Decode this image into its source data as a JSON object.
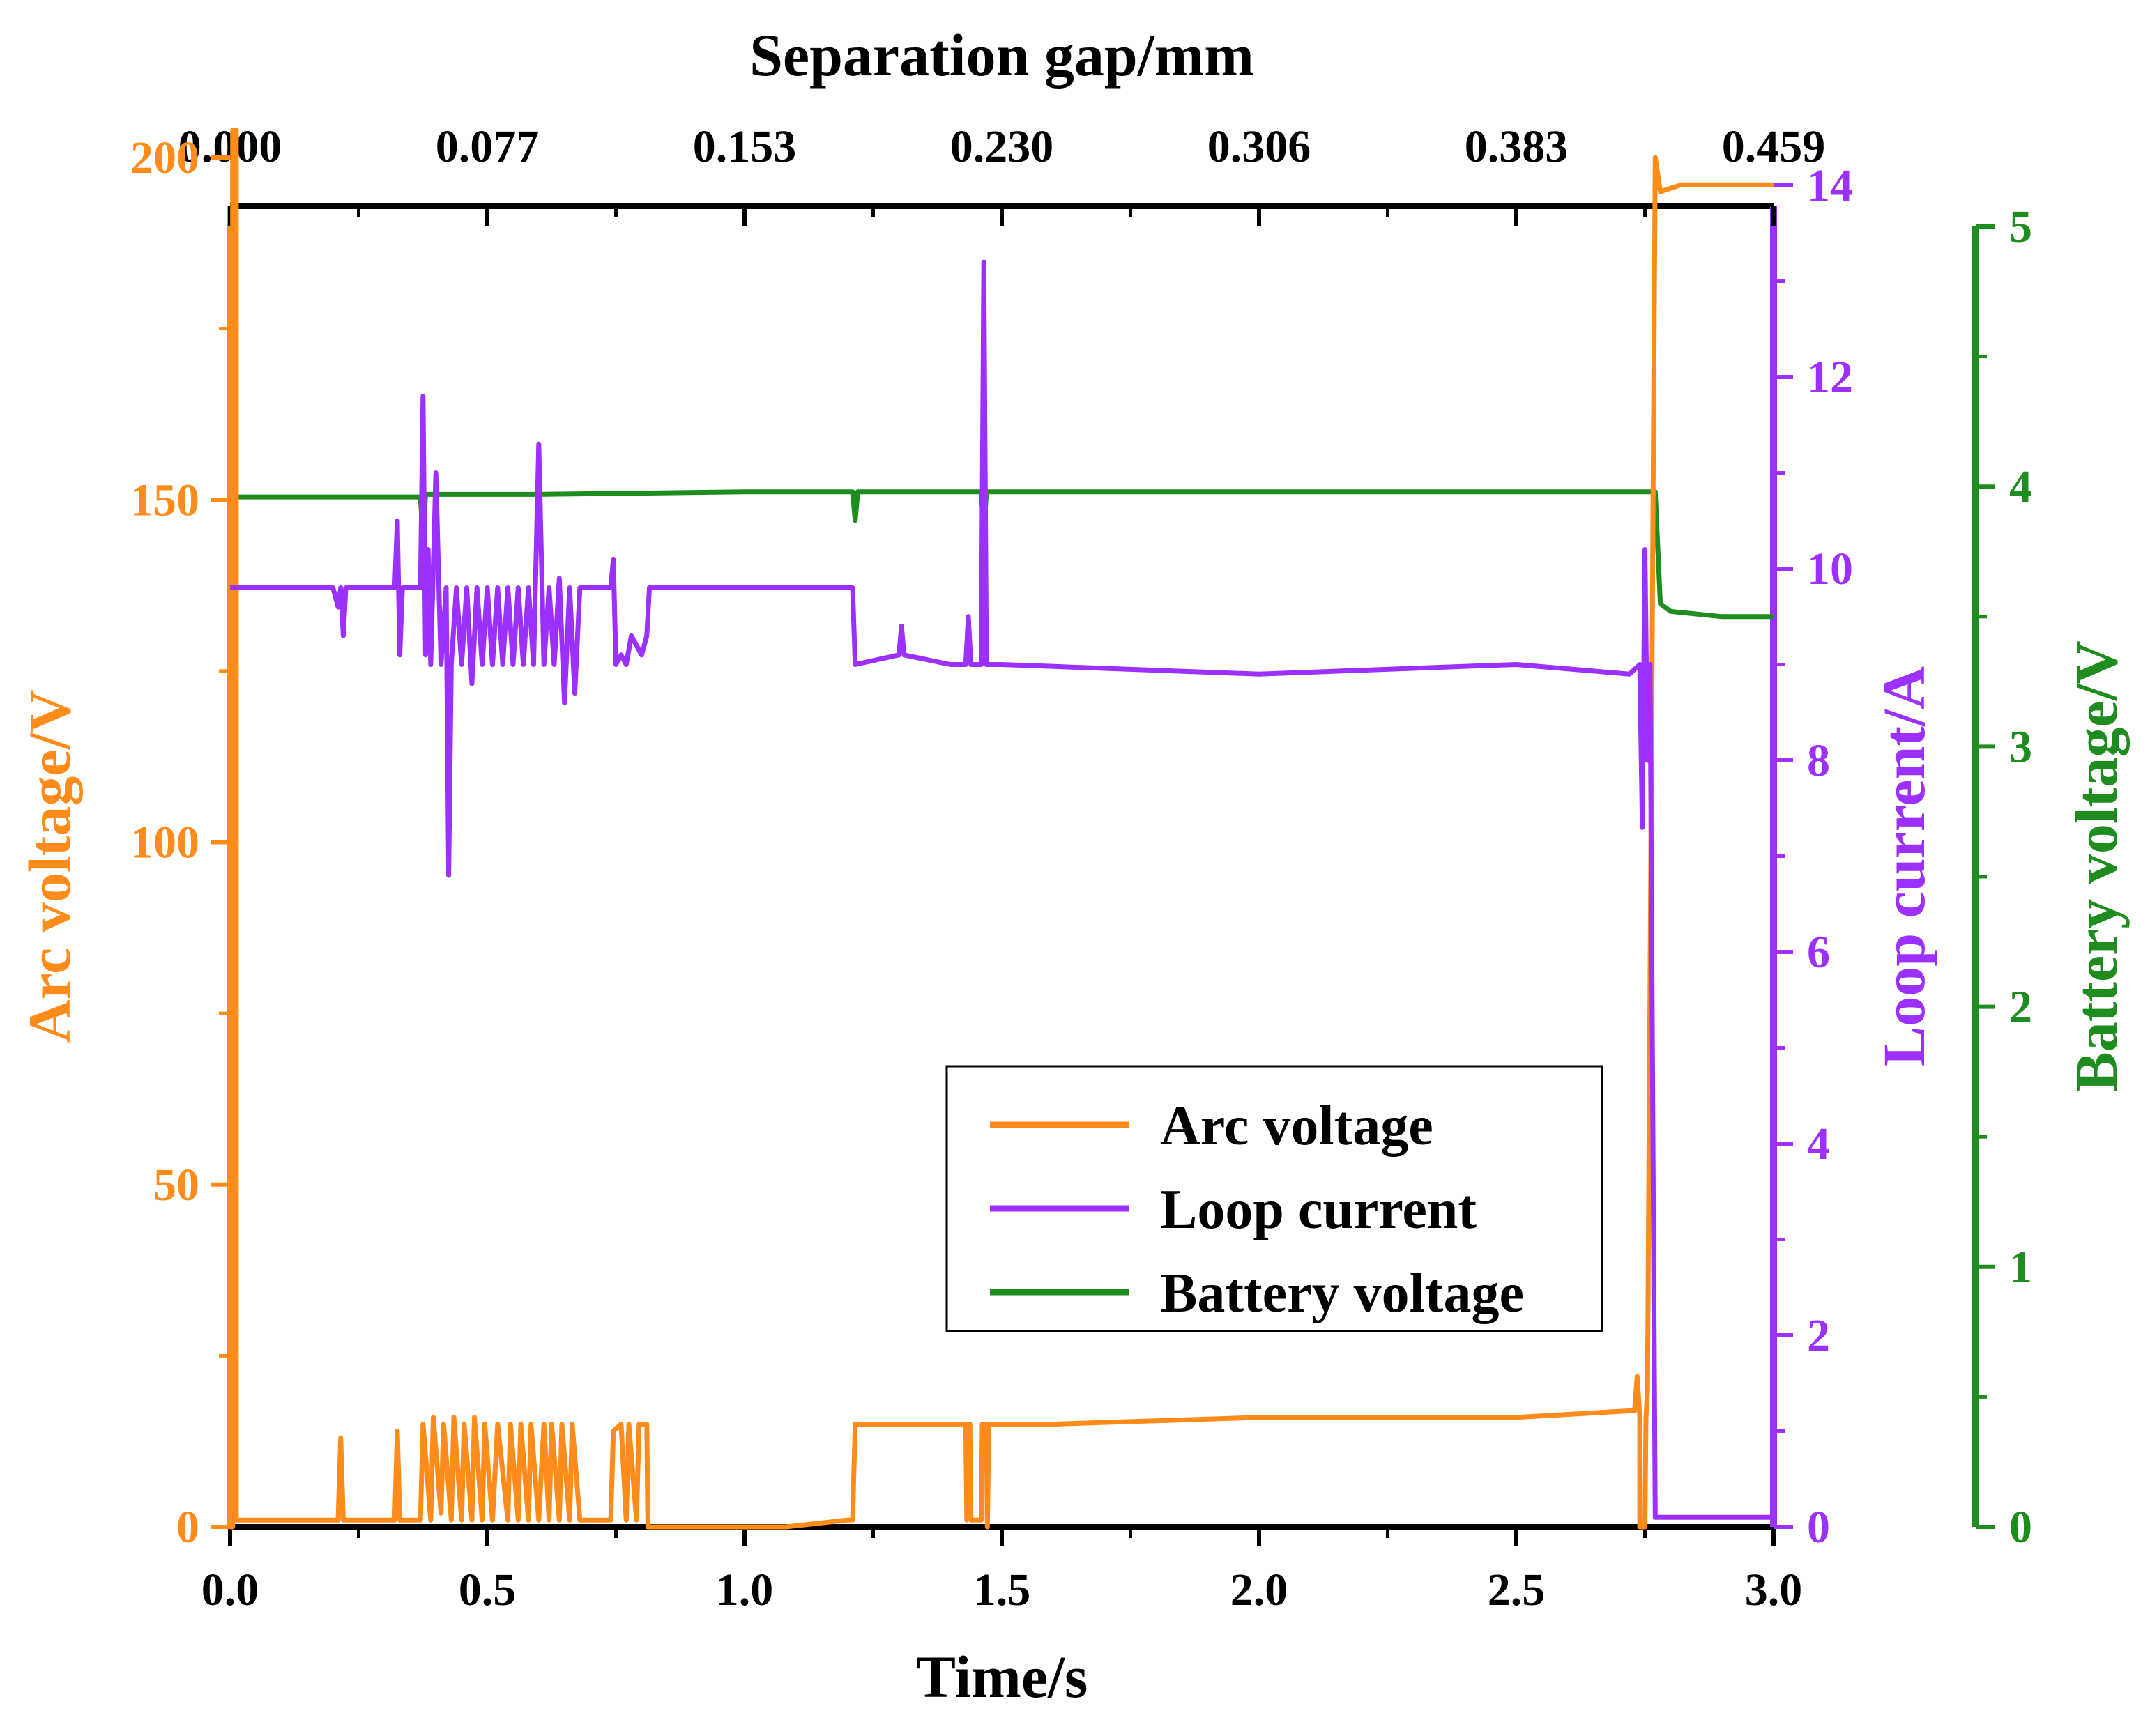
{
  "chart_data": {
    "type": "line",
    "title": "",
    "colors": {
      "arc": "#FF8C1A",
      "current": "#9B30FF",
      "battery": "#1F8C1F",
      "axis": "#000000"
    },
    "xlabel": "Time/s",
    "x_range": [
      0.0,
      3.0
    ],
    "x_ticks": [
      "0.0",
      "0.5",
      "1.0",
      "1.5",
      "2.0",
      "2.5",
      "3.0"
    ],
    "x_tick_values": [
      0.0,
      0.5,
      1.0,
      1.5,
      2.0,
      2.5,
      3.0
    ],
    "top_xlabel": "Separation gap/mm",
    "top_range": [
      0.0,
      0.459
    ],
    "top_ticks": [
      "0.000",
      "0.077",
      "0.153",
      "0.230",
      "0.306",
      "0.383",
      "0.459"
    ],
    "top_tick_values": [
      0.0,
      0.0765,
      0.153,
      0.2295,
      0.306,
      0.3825,
      0.459
    ],
    "y_left": {
      "label": "Arc voltage/V",
      "range": [
        0,
        200
      ],
      "ticks": [
        "0",
        "50",
        "100",
        "150",
        "200"
      ],
      "tick_values": [
        0,
        50,
        100,
        150,
        200
      ]
    },
    "y_right1": {
      "label": "Loop current/A",
      "range": [
        0,
        14
      ],
      "ticks": [
        "0",
        "2",
        "4",
        "6",
        "8",
        "10",
        "12",
        "14"
      ],
      "tick_values": [
        0,
        2,
        4,
        6,
        8,
        10,
        12,
        14
      ]
    },
    "y_right2": {
      "label": "Battery voltage/V",
      "range": [
        0,
        5
      ],
      "ticks": [
        "0",
        "1",
        "2",
        "3",
        "4",
        "5"
      ],
      "tick_values": [
        0,
        1,
        2,
        3,
        4,
        5
      ]
    },
    "legend": {
      "position": "lower-center",
      "entries": [
        "Arc voltage",
        "Loop current",
        "Battery voltage"
      ]
    },
    "series": [
      {
        "name": "Arc voltage",
        "axis": "left",
        "points": [
          [
            0.0,
            0
          ],
          [
            0.005,
            0
          ],
          [
            0.005,
            204
          ],
          [
            0.012,
            204
          ],
          [
            0.012,
            1
          ],
          [
            0.21,
            1
          ],
          [
            0.215,
            13
          ],
          [
            0.22,
            1
          ],
          [
            0.32,
            1
          ],
          [
            0.325,
            14
          ],
          [
            0.33,
            1
          ],
          [
            0.37,
            1
          ],
          [
            0.375,
            15
          ],
          [
            0.39,
            1
          ],
          [
            0.395,
            16
          ],
          [
            0.41,
            2
          ],
          [
            0.415,
            15
          ],
          [
            0.43,
            1
          ],
          [
            0.435,
            16
          ],
          [
            0.45,
            1
          ],
          [
            0.455,
            15
          ],
          [
            0.47,
            1
          ],
          [
            0.475,
            16
          ],
          [
            0.49,
            1
          ],
          [
            0.495,
            15
          ],
          [
            0.51,
            1
          ],
          [
            0.52,
            15
          ],
          [
            0.54,
            1
          ],
          [
            0.545,
            15
          ],
          [
            0.56,
            1
          ],
          [
            0.565,
            15
          ],
          [
            0.58,
            1
          ],
          [
            0.585,
            15
          ],
          [
            0.6,
            1
          ],
          [
            0.61,
            15
          ],
          [
            0.62,
            1
          ],
          [
            0.625,
            15
          ],
          [
            0.64,
            1
          ],
          [
            0.645,
            15
          ],
          [
            0.66,
            1
          ],
          [
            0.665,
            15
          ],
          [
            0.68,
            1
          ],
          [
            0.74,
            1
          ],
          [
            0.745,
            14
          ],
          [
            0.76,
            15
          ],
          [
            0.77,
            1
          ],
          [
            0.775,
            15
          ],
          [
            0.79,
            1
          ],
          [
            0.795,
            15
          ],
          [
            0.81,
            15
          ],
          [
            0.812,
            0
          ],
          [
            1.08,
            0
          ],
          [
            1.2,
            1
          ],
          [
            1.21,
            1
          ],
          [
            1.215,
            15
          ],
          [
            1.3,
            15
          ],
          [
            1.43,
            15
          ],
          [
            1.432,
            1
          ],
          [
            1.438,
            15
          ],
          [
            1.44,
            1
          ],
          [
            1.46,
            1
          ],
          [
            1.462,
            15
          ],
          [
            1.47,
            15
          ],
          [
            1.472,
            0
          ],
          [
            1.475,
            15
          ],
          [
            1.6,
            15
          ],
          [
            2.0,
            16
          ],
          [
            2.5,
            16
          ],
          [
            2.73,
            17
          ],
          [
            2.735,
            22
          ],
          [
            2.74,
            16
          ],
          [
            2.74,
            0
          ],
          [
            2.75,
            0
          ],
          [
            2.752,
            16
          ],
          [
            2.755,
            20
          ],
          [
            2.77,
            200
          ],
          [
            2.78,
            195
          ],
          [
            2.82,
            196
          ],
          [
            3.0,
            196
          ]
        ]
      },
      {
        "name": "Loop current",
        "axis": "right1",
        "points": [
          [
            0.0,
            9.8
          ],
          [
            0.2,
            9.8
          ],
          [
            0.21,
            9.6
          ],
          [
            0.215,
            9.8
          ],
          [
            0.22,
            9.3
          ],
          [
            0.225,
            9.8
          ],
          [
            0.32,
            9.8
          ],
          [
            0.325,
            10.5
          ],
          [
            0.33,
            9.1
          ],
          [
            0.335,
            9.8
          ],
          [
            0.37,
            9.8
          ],
          [
            0.375,
            11.8
          ],
          [
            0.38,
            9.1
          ],
          [
            0.385,
            10.2
          ],
          [
            0.39,
            9.0
          ],
          [
            0.4,
            11.0
          ],
          [
            0.41,
            9.0
          ],
          [
            0.42,
            9.8
          ],
          [
            0.425,
            6.8
          ],
          [
            0.43,
            9.0
          ],
          [
            0.44,
            9.8
          ],
          [
            0.45,
            9.0
          ],
          [
            0.46,
            9.8
          ],
          [
            0.47,
            8.8
          ],
          [
            0.48,
            9.8
          ],
          [
            0.49,
            9.0
          ],
          [
            0.5,
            9.8
          ],
          [
            0.51,
            9.0
          ],
          [
            0.52,
            9.8
          ],
          [
            0.53,
            9.0
          ],
          [
            0.54,
            9.8
          ],
          [
            0.55,
            9.0
          ],
          [
            0.56,
            9.8
          ],
          [
            0.57,
            9.0
          ],
          [
            0.58,
            9.8
          ],
          [
            0.59,
            9.0
          ],
          [
            0.6,
            11.3
          ],
          [
            0.61,
            9.0
          ],
          [
            0.62,
            9.8
          ],
          [
            0.63,
            9.0
          ],
          [
            0.64,
            9.9
          ],
          [
            0.65,
            8.6
          ],
          [
            0.66,
            9.8
          ],
          [
            0.67,
            8.7
          ],
          [
            0.68,
            9.8
          ],
          [
            0.74,
            9.8
          ],
          [
            0.745,
            10.1
          ],
          [
            0.75,
            9.0
          ],
          [
            0.76,
            9.1
          ],
          [
            0.77,
            9.0
          ],
          [
            0.78,
            9.3
          ],
          [
            0.8,
            9.1
          ],
          [
            0.81,
            9.3
          ],
          [
            0.815,
            9.8
          ],
          [
            1.0,
            9.8
          ],
          [
            1.2,
            9.8
          ],
          [
            1.21,
            9.8
          ],
          [
            1.215,
            9.0
          ],
          [
            1.3,
            9.1
          ],
          [
            1.305,
            9.4
          ],
          [
            1.31,
            9.1
          ],
          [
            1.4,
            9.0
          ],
          [
            1.43,
            9.0
          ],
          [
            1.435,
            9.5
          ],
          [
            1.44,
            9.0
          ],
          [
            1.46,
            9.0
          ],
          [
            1.465,
            13.2
          ],
          [
            1.47,
            9.0
          ],
          [
            1.5,
            9.0
          ],
          [
            2.0,
            8.9
          ],
          [
            2.5,
            9.0
          ],
          [
            2.72,
            8.9
          ],
          [
            2.74,
            9.0
          ],
          [
            2.745,
            7.3
          ],
          [
            2.75,
            10.2
          ],
          [
            2.755,
            8.0
          ],
          [
            2.76,
            9.0
          ],
          [
            2.77,
            0.1
          ],
          [
            3.0,
            0.1
          ]
        ]
      },
      {
        "name": "Battery voltage",
        "axis": "right2",
        "points": [
          [
            0.0,
            3.96
          ],
          [
            0.37,
            3.96
          ],
          [
            0.375,
            3.8
          ],
          [
            0.38,
            3.97
          ],
          [
            0.6,
            3.97
          ],
          [
            1.0,
            3.98
          ],
          [
            1.2,
            3.98
          ],
          [
            1.21,
            3.98
          ],
          [
            1.215,
            3.87
          ],
          [
            1.22,
            3.98
          ],
          [
            1.46,
            3.98
          ],
          [
            1.465,
            3.82
          ],
          [
            1.47,
            3.98
          ],
          [
            2.0,
            3.98
          ],
          [
            2.7,
            3.98
          ],
          [
            2.76,
            3.98
          ],
          [
            2.77,
            3.98
          ],
          [
            2.78,
            3.55
          ],
          [
            2.8,
            3.52
          ],
          [
            2.9,
            3.5
          ],
          [
            3.0,
            3.5
          ]
        ]
      }
    ]
  }
}
